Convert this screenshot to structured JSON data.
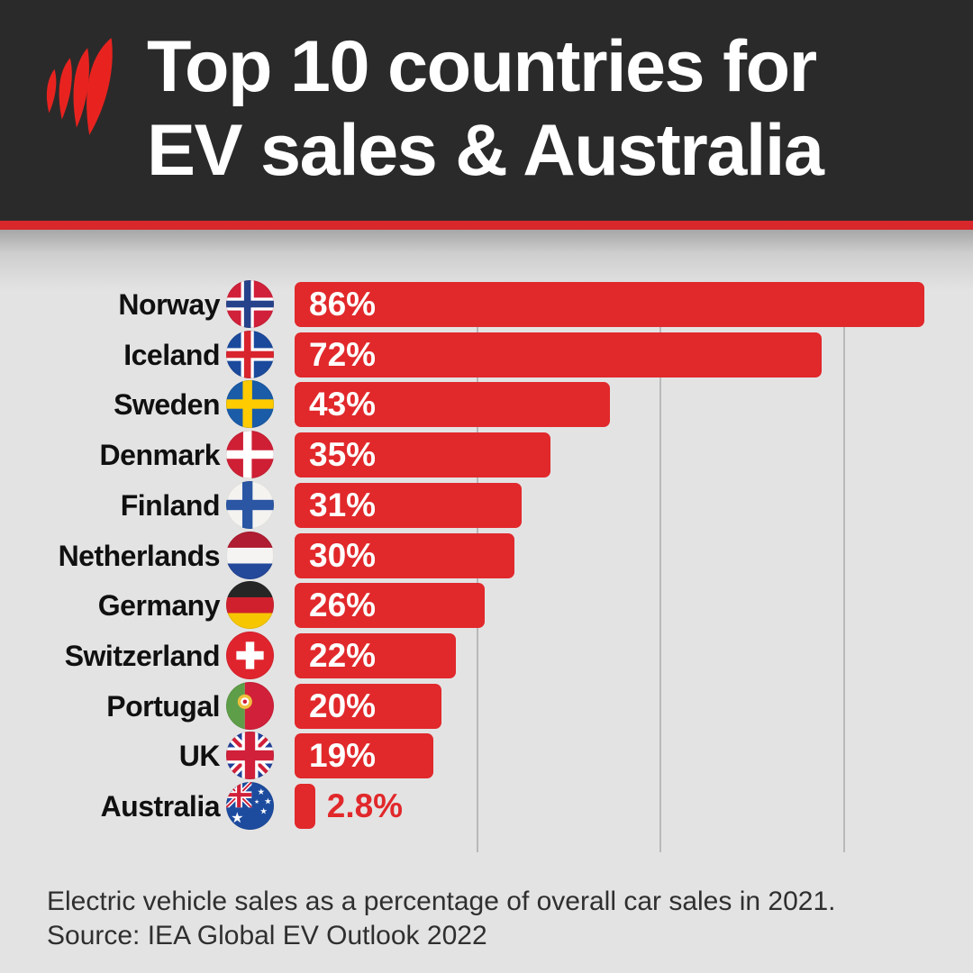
{
  "header": {
    "title_line1": "Top 10 countries for",
    "title_line2": "EV sales & Australia",
    "logo": "sbs-flames-logo"
  },
  "chart_data": {
    "type": "bar",
    "orientation": "horizontal",
    "title": "Top 10 countries for EV sales & Australia",
    "unit": "%",
    "categories": [
      "Norway",
      "Iceland",
      "Sweden",
      "Denmark",
      "Finland",
      "Netherlands",
      "Germany",
      "Switzerland",
      "Portugal",
      "UK",
      "Australia"
    ],
    "values": [
      86,
      72,
      43,
      35,
      31,
      30,
      26,
      22,
      20,
      19,
      2.8
    ],
    "value_labels": [
      "86%",
      "72%",
      "43%",
      "35%",
      "31%",
      "30%",
      "26%",
      "22%",
      "20%",
      "19%",
      "2.8%"
    ],
    "flags": [
      "norway-flag",
      "iceland-flag",
      "sweden-flag",
      "denmark-flag",
      "finland-flag",
      "netherlands-flag",
      "germany-flag",
      "switzerland-flag",
      "portugal-flag",
      "uk-flag",
      "australia-flag"
    ],
    "xlim": [
      0,
      100
    ],
    "gridlines_percent": [
      25,
      50,
      75
    ],
    "grid": true,
    "legend": false,
    "bar_color": "#e1282b",
    "note": "Electric vehicle sales as a percentage of overall car sales in 2021.",
    "source": "Source: IEA Global EV Outlook 2022"
  },
  "colors": {
    "header_bg": "#2b2a2a",
    "accent_red": "#d8282b",
    "chart_bg": "#e4e3e3",
    "gridline": "#b9b9bb",
    "country_label": "#101010",
    "value_text_inside": "#ffffff",
    "value_text_outside": "#e1282b",
    "footer_text": "#2f2f2f"
  }
}
